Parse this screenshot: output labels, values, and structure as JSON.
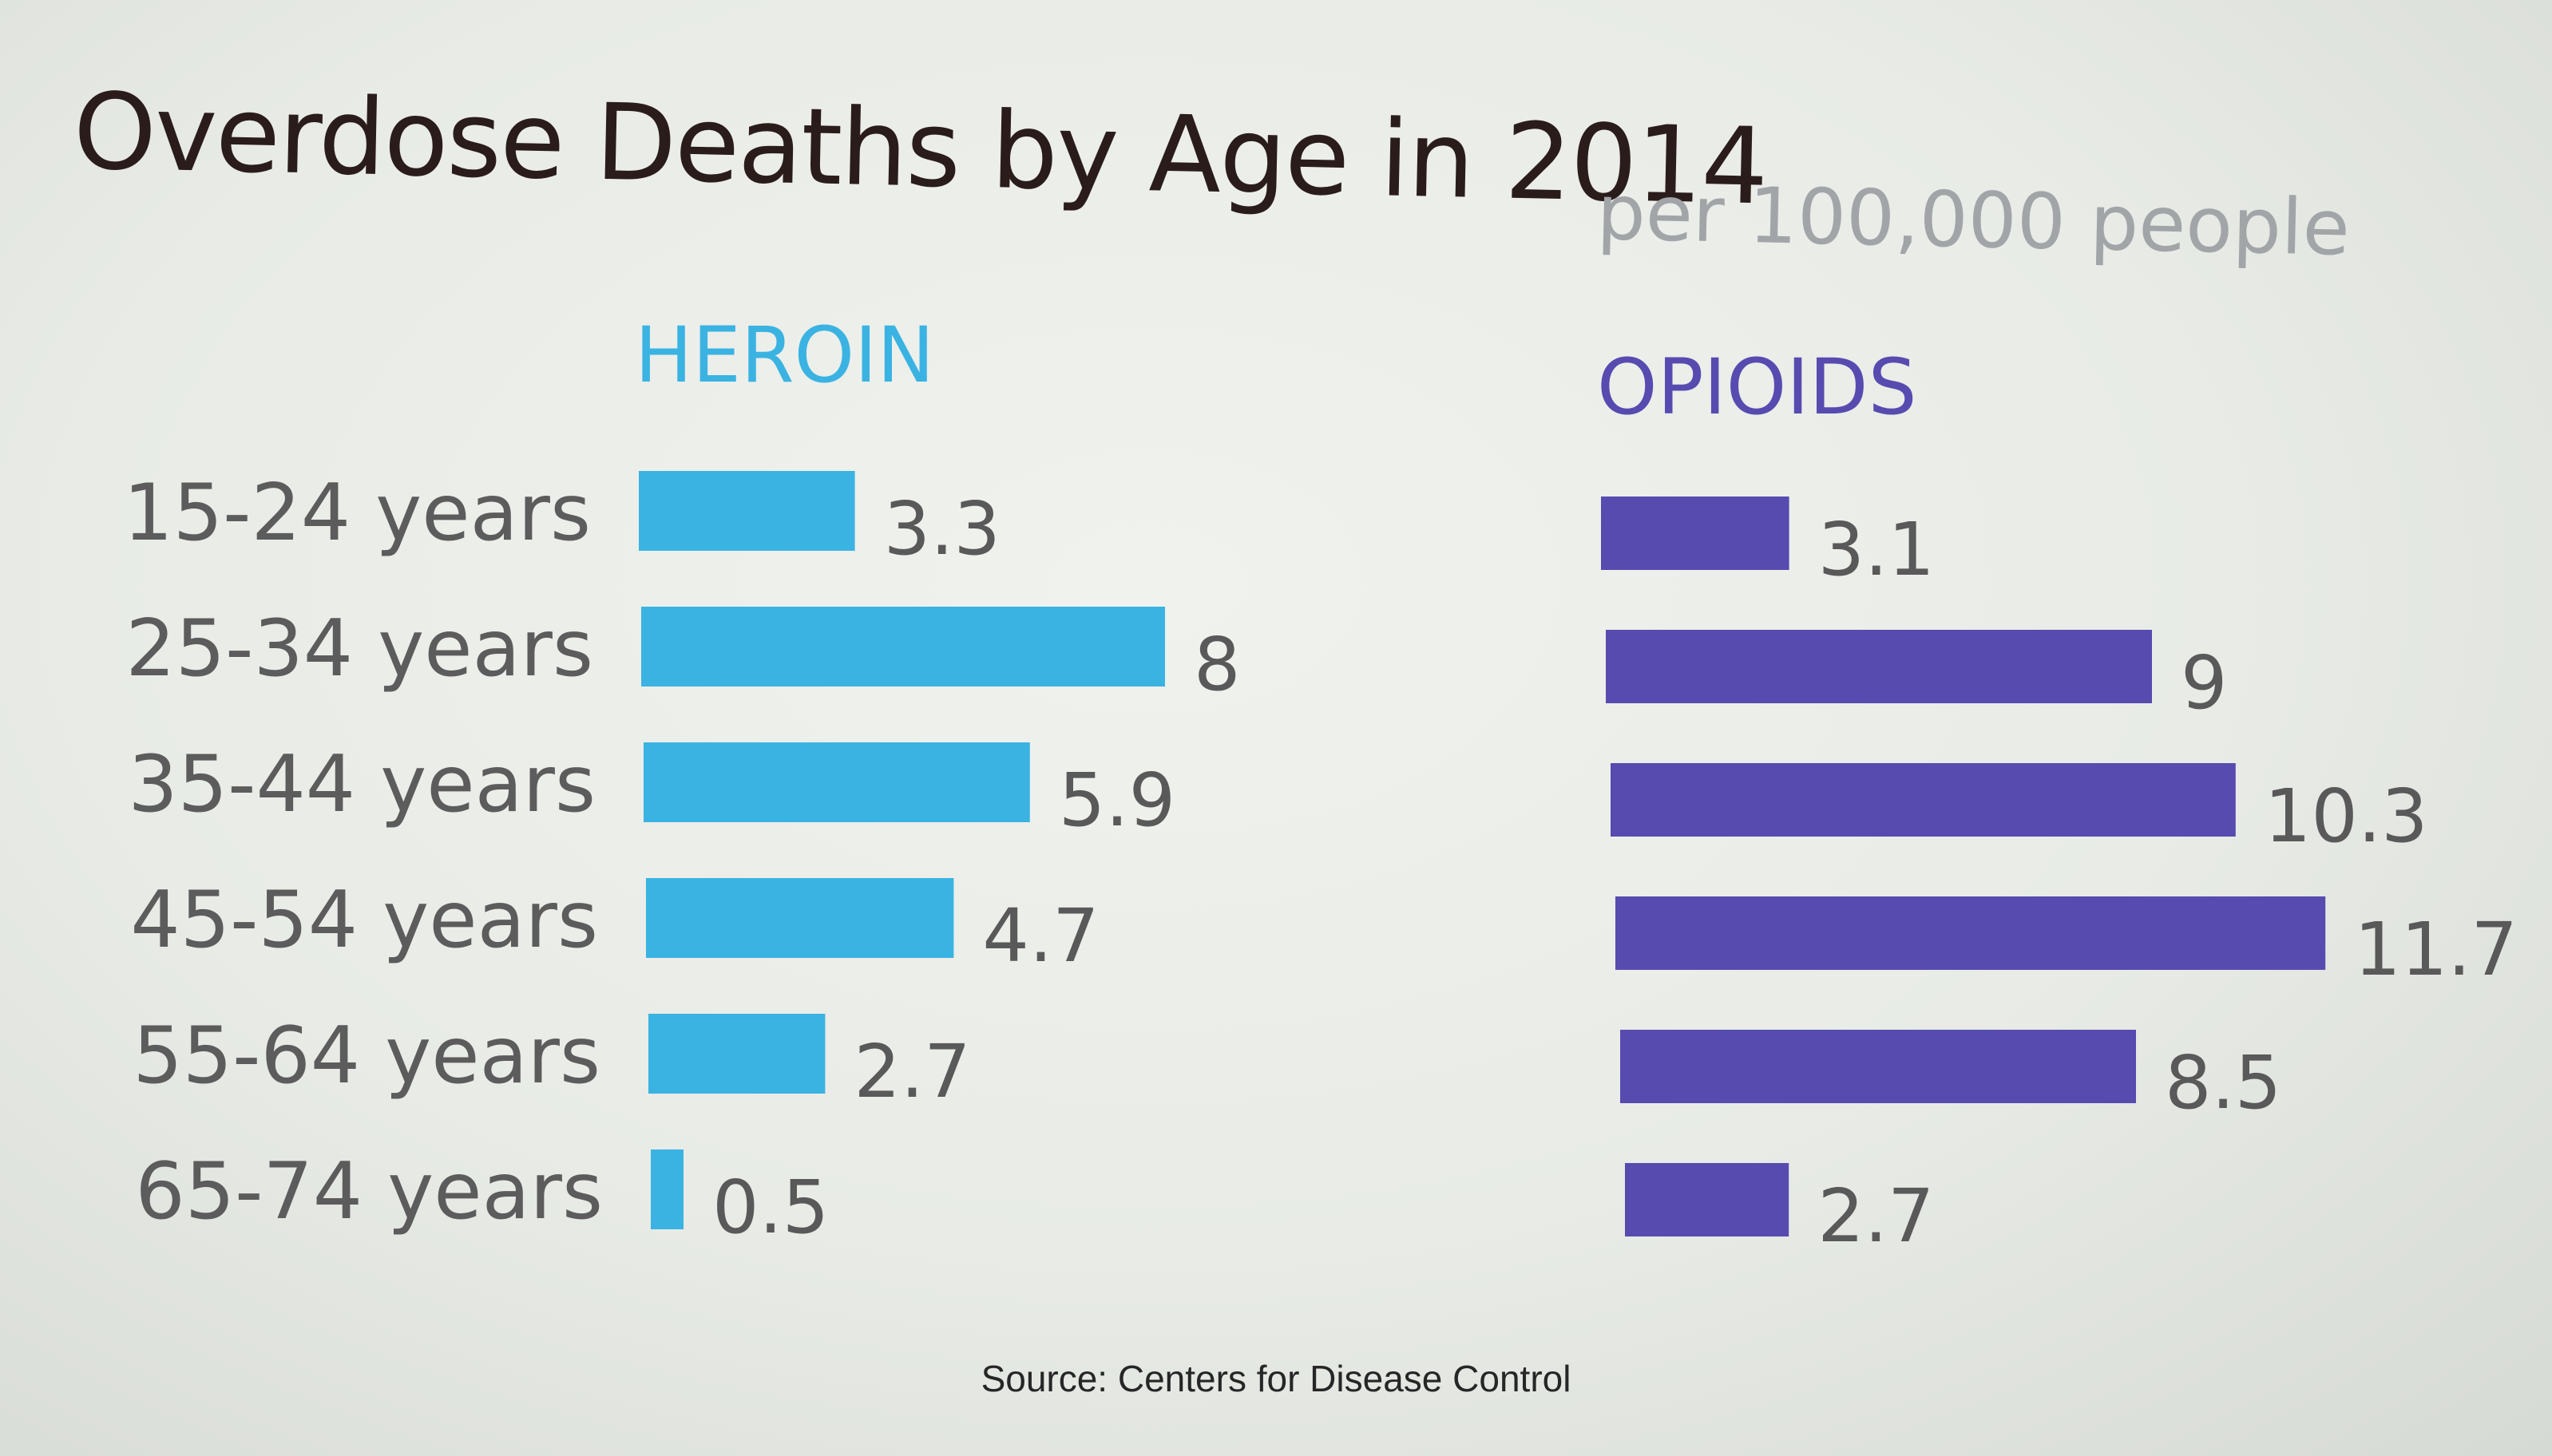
{
  "title": "Overdose Deaths by Age in 2014",
  "subtitle": "per 100,000 people",
  "source": "Source: Centers for Disease Control",
  "colors": {
    "heroin": "#3ab3e2",
    "opioids": "#574bb0",
    "category_label": "#5c5c5c",
    "value_label": "#595959"
  },
  "chart_data": [
    {
      "type": "bar",
      "orientation": "horizontal",
      "title": "HEROIN",
      "categories": [
        "15-24 years",
        "25-34 years",
        "35-44 years",
        "45-54 years",
        "55-64 years",
        "65-74 years"
      ],
      "values": [
        3.3,
        8,
        5.9,
        4.7,
        2.7,
        0.5
      ],
      "value_labels": [
        "3.3",
        "8",
        "5.9",
        "4.7",
        "2.7",
        "0.5"
      ],
      "color": "#3ab3e2"
    },
    {
      "type": "bar",
      "orientation": "horizontal",
      "title": "OPIOIDS",
      "categories": [
        "15-24 years",
        "25-34 years",
        "35-44 years",
        "45-54 years",
        "55-64 years",
        "65-74 years"
      ],
      "values": [
        3.1,
        9,
        10.3,
        11.7,
        8.5,
        2.7
      ],
      "value_labels": [
        "3.1",
        "9",
        "10.3",
        "11.7",
        "8.5",
        "2.7"
      ],
      "color": "#574bb0"
    }
  ]
}
